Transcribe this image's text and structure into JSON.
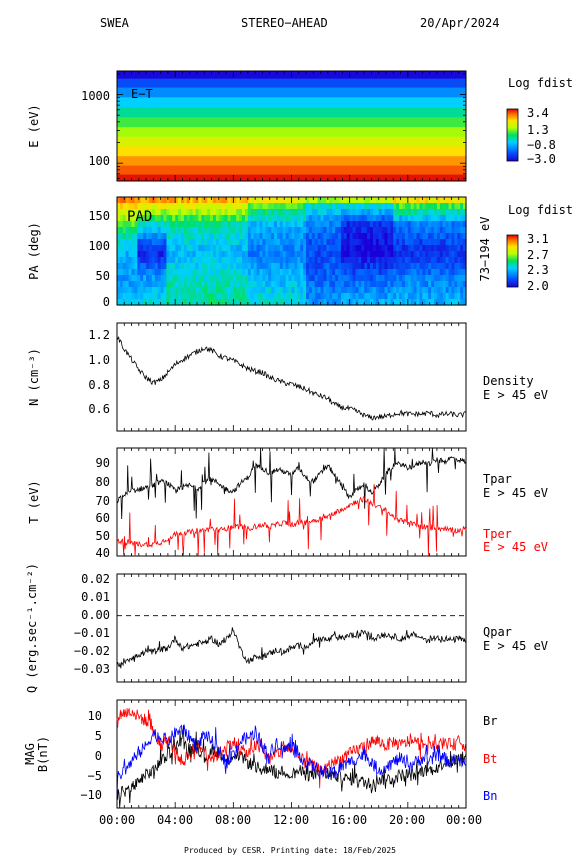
{
  "header": {
    "instrument": "SWEA",
    "spacecraft": "STEREO−AHEAD",
    "date": "20/Apr/2024"
  },
  "footer": {
    "credit": "Produced by CESR.   Printing date: 18/Feb/2025"
  },
  "colors": {
    "black": "#000000",
    "red": "#ff0000",
    "blue": "#0000ff"
  },
  "panels": {
    "energy": {
      "ylabel": "E (eV)",
      "tag": "E−T",
      "ticks": [
        "1000",
        "100"
      ],
      "bar_title": "Log fdist",
      "bar_ticks": [
        "3.4",
        "1.3",
        "−0.8",
        "−3.0"
      ]
    },
    "pad": {
      "ylabel": "PA (deg)",
      "tag": "PAD",
      "ticks": [
        "150",
        "100",
        "50",
        "0"
      ],
      "range_label": "73−194 eV",
      "bar_title": "Log fdist",
      "bar_ticks": [
        "3.1",
        "2.7",
        "2.3",
        "2.0"
      ]
    },
    "density": {
      "ylabel": "N (cm⁻³)",
      "ticks": [
        "1.2",
        "1.0",
        "0.8",
        "0.6"
      ],
      "label1": "Density",
      "label2": "E > 45 eV"
    },
    "temperature": {
      "ylabel": "T (eV)",
      "ticks": [
        "90",
        "80",
        "70",
        "60",
        "50",
        "40"
      ],
      "tpar1": "Tpar",
      "tpar2": "E > 45 eV",
      "tper1": "Tper",
      "tper2": "E > 45 eV"
    },
    "heatflux": {
      "ylabel": "Q (erg.sec⁻¹.cm⁻²)",
      "ticks": [
        "0.02",
        "0.01",
        "0.00",
        "−0.01",
        "−0.02",
        "−0.03"
      ],
      "label1": "Qpar",
      "label2": "E > 45 eV"
    },
    "mag": {
      "ylabel1": "MAG",
      "ylabel2": "B(nT)",
      "ticks": [
        "10",
        "5",
        "0",
        "−5",
        "−10"
      ],
      "br": "Br",
      "bt": "Bt",
      "bn": "Bn"
    }
  },
  "time_ticks": [
    "00:00",
    "04:00",
    "08:00",
    "12:00",
    "16:00",
    "20:00",
    "00:00"
  ],
  "chart_data": [
    {
      "type": "heatmap",
      "title": "E−T",
      "ylabel": "E (eV)",
      "y_scale": "log",
      "xlim": [
        0,
        24
      ],
      "ylim": [
        55,
        2200
      ],
      "colorbar": {
        "title": "Log fdist",
        "range": [
          -3.0,
          3.4
        ]
      },
      "levels": [
        {
          "energy_eV": 60,
          "log_fdist": 3.3
        },
        {
          "energy_eV": 80,
          "log_fdist": 2.9
        },
        {
          "energy_eV": 110,
          "log_fdist": 2.5
        },
        {
          "energy_eV": 150,
          "log_fdist": 2.0
        },
        {
          "energy_eV": 210,
          "log_fdist": 1.5
        },
        {
          "energy_eV": 290,
          "log_fdist": 1.0
        },
        {
          "energy_eV": 400,
          "log_fdist": 0.5
        },
        {
          "energy_eV": 560,
          "log_fdist": -0.1
        },
        {
          "energy_eV": 780,
          "log_fdist": -0.7
        },
        {
          "energy_eV": 1100,
          "log_fdist": -1.4
        },
        {
          "energy_eV": 1500,
          "log_fdist": -2.1
        },
        {
          "energy_eV": 2000,
          "log_fdist": -2.9
        }
      ]
    },
    {
      "type": "heatmap",
      "title": "PAD",
      "ylabel": "PA (deg)",
      "xlim": [
        0,
        24
      ],
      "ylim": [
        0,
        180
      ],
      "energy_range": "73−194 eV",
      "colorbar": {
        "title": "Log fdist",
        "range": [
          2.0,
          3.1
        ]
      },
      "segments": [
        {
          "t": [
            0,
            1.5
          ],
          "by_pa": {
            "0": 2.4,
            "45": 2.3,
            "90": 2.35,
            "135": 2.6,
            "165": 2.85,
            "180": 3.0
          }
        },
        {
          "t": [
            1.5,
            3.5
          ],
          "by_pa": {
            "0": 2.45,
            "45": 2.3,
            "90": 2.05,
            "135": 2.45,
            "165": 2.8,
            "180": 3.0
          }
        },
        {
          "t": [
            3.5,
            9
          ],
          "by_pa": {
            "0": 2.5,
            "45": 2.45,
            "90": 2.35,
            "135": 2.5,
            "165": 2.8,
            "180": 2.95
          }
        },
        {
          "t": [
            9,
            13
          ],
          "by_pa": {
            "0": 2.45,
            "45": 2.35,
            "90": 2.25,
            "135": 2.35,
            "165": 2.6,
            "180": 2.9
          }
        },
        {
          "t": [
            13,
            15.5
          ],
          "by_pa": {
            "0": 2.3,
            "45": 2.2,
            "90": 2.15,
            "135": 2.25,
            "165": 2.45,
            "180": 2.8
          }
        },
        {
          "t": [
            15.5,
            19
          ],
          "by_pa": {
            "0": 2.35,
            "45": 2.2,
            "90": 2.0,
            "135": 2.1,
            "165": 2.45,
            "180": 2.85
          }
        },
        {
          "t": [
            19,
            24
          ],
          "by_pa": {
            "0": 2.35,
            "45": 2.25,
            "90": 2.1,
            "135": 2.25,
            "165": 2.6,
            "180": 2.95
          }
        }
      ]
    },
    {
      "type": "line",
      "ylabel": "N (cm⁻³)",
      "xlim": [
        0,
        24
      ],
      "ylim": [
        0.45,
        1.28
      ],
      "series": [
        {
          "name": "Density",
          "color": "#000000",
          "x": [
            0,
            0.5,
            1,
            1.5,
            2,
            2.5,
            3,
            3.5,
            4,
            4.5,
            5,
            5.5,
            6,
            6.5,
            7,
            7.5,
            8,
            8.5,
            9,
            9.5,
            10,
            10.5,
            11,
            11.5,
            12,
            12.5,
            13,
            13.5,
            14,
            14.5,
            15,
            15.5,
            16,
            16.5,
            17,
            17.5,
            18,
            18.5,
            19,
            19.5,
            20,
            20.5,
            21,
            21.5,
            22,
            22.5,
            23,
            23.5,
            24
          ],
          "values": [
            1.18,
            1.08,
            1.0,
            0.92,
            0.86,
            0.82,
            0.84,
            0.9,
            0.96,
            1.0,
            1.03,
            1.06,
            1.09,
            1.07,
            1.03,
            1.01,
            0.99,
            0.96,
            0.93,
            0.91,
            0.9,
            0.86,
            0.84,
            0.82,
            0.81,
            0.79,
            0.77,
            0.74,
            0.72,
            0.7,
            0.65,
            0.63,
            0.62,
            0.6,
            0.57,
            0.55,
            0.56,
            0.56,
            0.58,
            0.59,
            0.58,
            0.58,
            0.58,
            0.59,
            0.57,
            0.58,
            0.58,
            0.57,
            0.58
          ]
        }
      ]
    },
    {
      "type": "line",
      "ylabel": "T (eV)",
      "xlim": [
        0,
        24
      ],
      "ylim": [
        38,
        93
      ],
      "series": [
        {
          "name": "Tpar",
          "color": "#000000",
          "x": [
            0,
            0.5,
            1,
            1.5,
            2,
            2.5,
            3,
            3.5,
            4,
            4.5,
            5,
            5.5,
            6,
            6.5,
            7,
            7.5,
            8,
            8.5,
            9,
            9.5,
            10,
            10.5,
            11,
            11.5,
            12,
            12.5,
            13,
            13.5,
            14,
            14.5,
            15,
            15.5,
            16,
            16.5,
            17,
            17.5,
            18,
            18.5,
            19,
            19.5,
            20,
            20.5,
            21,
            21.5,
            22,
            22.5,
            23,
            23.5,
            24
          ],
          "values": [
            66,
            69,
            71,
            72,
            73,
            74,
            76,
            75,
            71,
            73,
            74,
            72,
            76,
            77,
            75,
            72,
            71,
            75,
            78,
            84,
            83,
            80,
            82,
            81,
            79,
            83,
            78,
            76,
            80,
            84,
            79,
            73,
            68,
            72,
            75,
            70,
            74,
            80,
            84,
            85,
            83,
            84,
            86,
            85,
            87,
            86,
            88,
            87,
            86
          ]
        },
        {
          "name": "Tper",
          "color": "#ff0000",
          "x": [
            0,
            0.5,
            1,
            1.5,
            2,
            2.5,
            3,
            3.5,
            4,
            4.5,
            5,
            5.5,
            6,
            6.5,
            7,
            7.5,
            8,
            8.5,
            9,
            9.5,
            10,
            10.5,
            11,
            11.5,
            12,
            12.5,
            13,
            13.5,
            14,
            14.5,
            15,
            15.5,
            16,
            16.5,
            17,
            17.5,
            18,
            18.5,
            19,
            19.5,
            20,
            20.5,
            21,
            21.5,
            22,
            22.5,
            23,
            23.5,
            24
          ],
          "values": [
            46,
            45,
            45,
            44,
            44,
            44,
            45,
            47,
            49,
            50,
            50,
            51,
            51,
            52,
            51,
            52,
            53,
            53,
            52,
            53,
            54,
            53,
            54,
            55,
            54,
            55,
            55,
            56,
            57,
            58,
            60,
            62,
            64,
            66,
            67,
            65,
            63,
            61,
            58,
            56,
            55,
            54,
            53,
            53,
            52,
            52,
            51,
            51,
            52
          ]
        }
      ]
    },
    {
      "type": "line",
      "ylabel": "Q (erg.sec⁻¹.cm⁻²)",
      "xlim": [
        0,
        24
      ],
      "ylim": [
        -0.035,
        0.022
      ],
      "reference_line": {
        "y": 0.0,
        "style": "dashed"
      },
      "series": [
        {
          "name": "Qpar",
          "color": "#000000",
          "x": [
            0,
            0.5,
            1,
            1.5,
            2,
            2.5,
            3,
            3.5,
            4,
            4.5,
            5,
            5.5,
            6,
            6.5,
            7,
            7.5,
            8,
            8.5,
            9,
            9.5,
            10,
            10.5,
            11,
            11.5,
            12,
            12.5,
            13,
            13.5,
            14,
            14.5,
            15,
            15.5,
            16,
            16.5,
            17,
            17.5,
            18,
            18.5,
            19,
            19.5,
            20,
            20.5,
            21,
            21.5,
            22,
            22.5,
            23,
            23.5,
            24
          ],
          "values": [
            -0.026,
            -0.024,
            -0.022,
            -0.021,
            -0.019,
            -0.019,
            -0.018,
            -0.017,
            -0.012,
            -0.017,
            -0.016,
            -0.015,
            -0.014,
            -0.012,
            -0.015,
            -0.013,
            -0.007,
            -0.018,
            -0.024,
            -0.022,
            -0.021,
            -0.02,
            -0.018,
            -0.019,
            -0.017,
            -0.016,
            -0.016,
            -0.014,
            -0.012,
            -0.013,
            -0.011,
            -0.012,
            -0.01,
            -0.011,
            -0.008,
            -0.012,
            -0.011,
            -0.01,
            -0.011,
            -0.012,
            -0.011,
            -0.01,
            -0.012,
            -0.013,
            -0.011,
            -0.012,
            -0.013,
            -0.012,
            -0.014
          ]
        }
      ]
    },
    {
      "type": "line",
      "ylabel": "B(nT)",
      "xlim": [
        0,
        24
      ],
      "ylim": [
        -13,
        13
      ],
      "series": [
        {
          "name": "Br",
          "color": "#000000",
          "x": [
            0,
            0.5,
            1,
            1.5,
            2,
            2.5,
            3,
            3.5,
            4,
            4.5,
            5,
            5.5,
            6,
            6.5,
            7,
            7.5,
            8,
            8.5,
            9,
            9.5,
            10,
            10.5,
            11,
            11.5,
            12,
            12.5,
            13,
            13.5,
            14,
            14.5,
            15,
            15.5,
            16,
            16.5,
            17,
            17.5,
            18,
            18.5,
            19,
            19.5,
            20,
            20.5,
            21,
            21.5,
            22,
            22.5,
            23,
            23.5,
            24
          ],
          "values": [
            -10,
            -9,
            -8,
            -7,
            -5,
            -4,
            -2,
            0,
            2,
            3,
            1,
            2,
            -1,
            0,
            1,
            -2,
            0,
            -1,
            -2,
            -3,
            -4,
            -3,
            -5,
            -4,
            -5,
            -4,
            -5,
            -5,
            -4,
            -5,
            -5,
            -6,
            -6,
            -6,
            -7,
            -7,
            -6,
            -6,
            -6,
            -5,
            -5,
            -5,
            -4,
            -4,
            -3,
            -2,
            -2,
            -1,
            -1
          ]
        },
        {
          "name": "Bt",
          "color": "#ff0000",
          "x": [
            0,
            0.5,
            1,
            1.5,
            2,
            2.5,
            3,
            3.5,
            4,
            4.5,
            5,
            5.5,
            6,
            6.5,
            7,
            7.5,
            8,
            8.5,
            9,
            9.5,
            10,
            10.5,
            11,
            11.5,
            12,
            12.5,
            13,
            13.5,
            14,
            14.5,
            15,
            15.5,
            16,
            16.5,
            17,
            17.5,
            18,
            18.5,
            19,
            19.5,
            20,
            20.5,
            21,
            21.5,
            22,
            22.5,
            23,
            23.5,
            24
          ],
          "values": [
            9,
            10,
            10,
            9,
            8,
            5,
            2,
            3,
            1,
            -2,
            0,
            2,
            1,
            -1,
            0,
            2,
            3,
            1,
            0,
            2,
            1,
            -1,
            0,
            2,
            1,
            -1,
            -2,
            -3,
            -4,
            -3,
            -2,
            -1,
            0,
            1,
            2,
            3,
            3,
            2,
            3,
            2,
            3,
            3,
            2,
            3,
            2,
            3,
            2,
            3,
            2
          ]
        },
        {
          "name": "Bn",
          "color": "#0000ff",
          "x": [
            0,
            0.5,
            1,
            1.5,
            2,
            2.5,
            3,
            3.5,
            4,
            4.5,
            5,
            5.5,
            6,
            6.5,
            7,
            7.5,
            8,
            8.5,
            9,
            9.5,
            10,
            10.5,
            11,
            11.5,
            12,
            12.5,
            13,
            13.5,
            14,
            14.5,
            15,
            15.5,
            16,
            16.5,
            17,
            17.5,
            18,
            18.5,
            19,
            19.5,
            20,
            20.5,
            21,
            21.5,
            22,
            22.5,
            23,
            23.5,
            24
          ],
          "values": [
            -6,
            -4,
            -2,
            0,
            2,
            5,
            4,
            3,
            5,
            6,
            4,
            2,
            5,
            3,
            1,
            -2,
            0,
            3,
            4,
            5,
            2,
            0,
            3,
            1,
            2,
            0,
            -2,
            -3,
            -4,
            -5,
            -4,
            -3,
            -2,
            -1,
            0,
            -2,
            -4,
            -3,
            -2,
            -1,
            -3,
            -2,
            -1,
            -2,
            0,
            -1,
            -2,
            -1,
            -3
          ]
        }
      ]
    }
  ]
}
